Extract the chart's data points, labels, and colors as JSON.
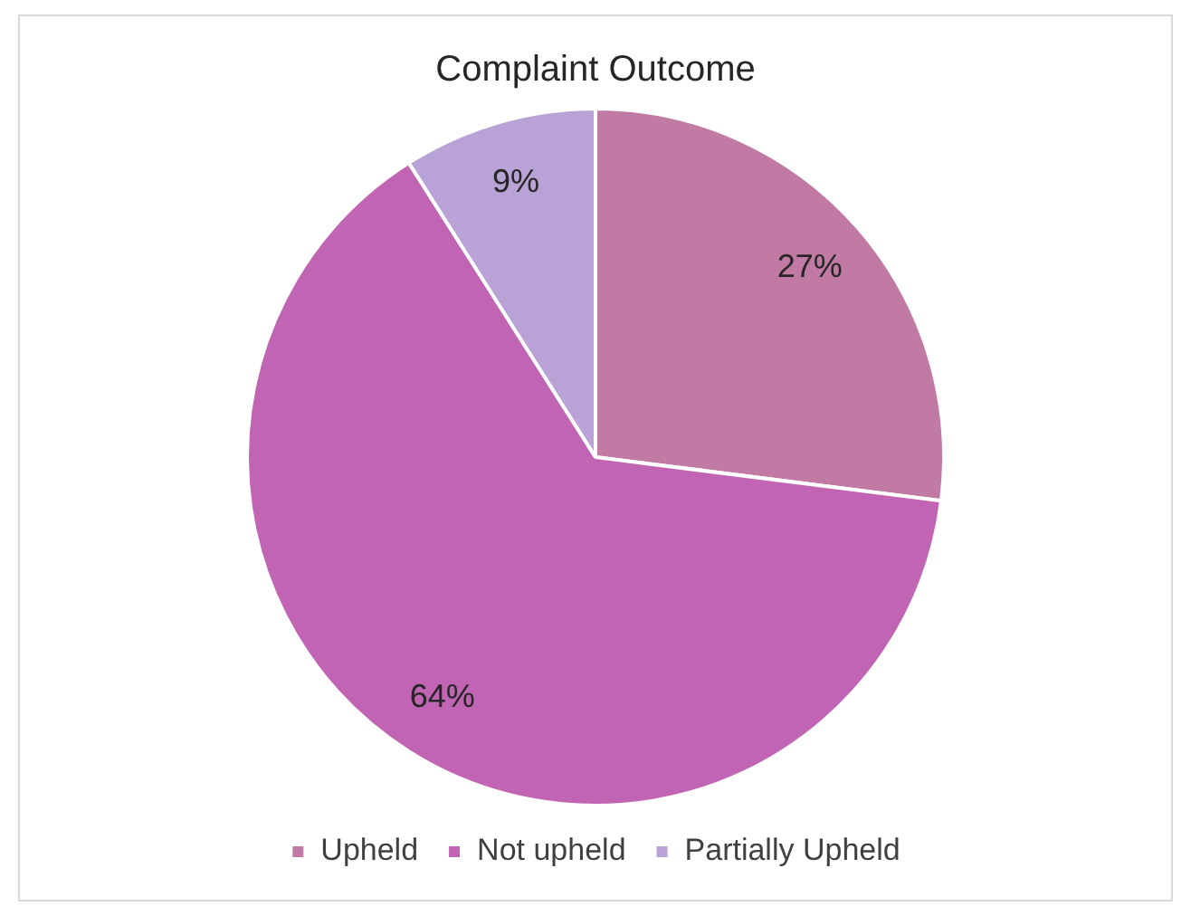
{
  "chart_data": {
    "type": "pie",
    "title": "Complaint Outcome",
    "categories": [
      "Upheld",
      "Not upheld",
      "Partially Upheld"
    ],
    "values": [
      27,
      64,
      9
    ],
    "colors": [
      "#c07aa3",
      "#c264b4",
      "#b9a2d6"
    ],
    "value_labels": [
      "27%",
      "64%",
      "9%"
    ],
    "legend": "bottom"
  }
}
